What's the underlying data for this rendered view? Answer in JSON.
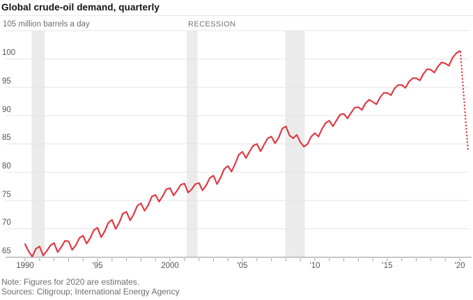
{
  "header": {
    "title": "Global crude-oil demand, quarterly",
    "unit_label": "105 million barrels a day",
    "recession_label": "RECESSION"
  },
  "footer": {
    "note": "Note: Figures for 2020 are estimates.",
    "sources": "Sources: Citigroup; International Energy Agency"
  },
  "colors": {
    "line_red": "#df3b44",
    "recession_band": "#ebebeb",
    "gridline": "#e4e4e4",
    "axis": "#999999",
    "tick": "#999999",
    "label_gray": "#565656",
    "secondary_gray": "#6d6d6d",
    "title_black": "#111111"
  },
  "chart_data": {
    "type": "line",
    "title": "Global crude-oil demand, quarterly",
    "ylabel": "million barrels a day",
    "ylim": [
      65,
      105
    ],
    "y_ticks": [
      65,
      70,
      75,
      80,
      85,
      90,
      95,
      100,
      105
    ],
    "xlim": [
      1988.65,
      2020.6
    ],
    "x_tick_years_every": 1,
    "x_tick_start": 1990,
    "x_tick_end": 2020,
    "x_tick_labels": [
      {
        "year": 1990,
        "label": "1990"
      },
      {
        "year": 1995,
        "label": "'95"
      },
      {
        "year": 2000,
        "label": "2000"
      },
      {
        "year": 2005,
        "label": "'05"
      },
      {
        "year": 2010,
        "label": "'10"
      },
      {
        "year": 2015,
        "label": "'15"
      },
      {
        "year": 2020,
        "label": "'20"
      }
    ],
    "grid": "horizontal",
    "legend": "none",
    "recessions": [
      {
        "start": 1990.45,
        "end": 1991.35
      },
      {
        "start": 2001.15,
        "end": 2001.9
      },
      {
        "start": 2007.95,
        "end": 2009.3
      }
    ],
    "series": [
      {
        "name": "Global crude-oil demand (million barrels a day)",
        "style": "solid",
        "points": [
          [
            1990.0,
            67.3
          ],
          [
            1990.25,
            66.0
          ],
          [
            1990.5,
            65.1
          ],
          [
            1990.75,
            66.5
          ],
          [
            1991.0,
            66.9
          ],
          [
            1991.25,
            65.3
          ],
          [
            1991.5,
            66.1
          ],
          [
            1991.75,
            67.1
          ],
          [
            1992.0,
            67.5
          ],
          [
            1992.25,
            65.9
          ],
          [
            1992.5,
            66.8
          ],
          [
            1992.75,
            67.9
          ],
          [
            1993.0,
            67.8
          ],
          [
            1993.25,
            66.3
          ],
          [
            1993.5,
            67.1
          ],
          [
            1993.75,
            68.4
          ],
          [
            1994.0,
            68.8
          ],
          [
            1994.25,
            67.4
          ],
          [
            1994.5,
            68.4
          ],
          [
            1994.75,
            69.8
          ],
          [
            1995.0,
            70.2
          ],
          [
            1995.25,
            68.5
          ],
          [
            1995.5,
            69.6
          ],
          [
            1995.75,
            71.1
          ],
          [
            1996.0,
            71.6
          ],
          [
            1996.25,
            70.0
          ],
          [
            1996.5,
            71.1
          ],
          [
            1996.75,
            72.7
          ],
          [
            1997.0,
            73.0
          ],
          [
            1997.25,
            71.5
          ],
          [
            1997.5,
            72.6
          ],
          [
            1997.75,
            74.1
          ],
          [
            1998.0,
            74.5
          ],
          [
            1998.25,
            73.2
          ],
          [
            1998.5,
            74.2
          ],
          [
            1998.75,
            75.7
          ],
          [
            1999.0,
            76.0
          ],
          [
            1999.25,
            74.8
          ],
          [
            1999.5,
            75.8
          ],
          [
            1999.75,
            77.0
          ],
          [
            2000.0,
            77.2
          ],
          [
            2000.25,
            75.9
          ],
          [
            2000.5,
            76.8
          ],
          [
            2000.75,
            77.8
          ],
          [
            2001.0,
            78.0
          ],
          [
            2001.25,
            76.4
          ],
          [
            2001.5,
            77.0
          ],
          [
            2001.75,
            77.9
          ],
          [
            2002.0,
            78.1
          ],
          [
            2002.25,
            76.8
          ],
          [
            2002.5,
            77.7
          ],
          [
            2002.75,
            79.0
          ],
          [
            2003.0,
            79.4
          ],
          [
            2003.25,
            77.9
          ],
          [
            2003.5,
            79.1
          ],
          [
            2003.75,
            80.6
          ],
          [
            2004.0,
            81.1
          ],
          [
            2004.25,
            80.1
          ],
          [
            2004.5,
            81.5
          ],
          [
            2004.75,
            83.1
          ],
          [
            2005.0,
            83.6
          ],
          [
            2005.25,
            82.5
          ],
          [
            2005.5,
            83.7
          ],
          [
            2005.75,
            84.7
          ],
          [
            2006.0,
            85.0
          ],
          [
            2006.25,
            83.7
          ],
          [
            2006.5,
            84.9
          ],
          [
            2006.75,
            86.0
          ],
          [
            2007.0,
            86.3
          ],
          [
            2007.25,
            85.1
          ],
          [
            2007.5,
            86.1
          ],
          [
            2007.75,
            87.7
          ],
          [
            2008.0,
            88.1
          ],
          [
            2008.25,
            86.5
          ],
          [
            2008.5,
            86.0
          ],
          [
            2008.75,
            86.6
          ],
          [
            2009.0,
            85.3
          ],
          [
            2009.25,
            84.5
          ],
          [
            2009.5,
            85.0
          ],
          [
            2009.75,
            86.3
          ],
          [
            2010.0,
            86.9
          ],
          [
            2010.25,
            86.3
          ],
          [
            2010.5,
            87.7
          ],
          [
            2010.75,
            88.7
          ],
          [
            2011.0,
            89.1
          ],
          [
            2011.25,
            88.1
          ],
          [
            2011.5,
            89.2
          ],
          [
            2011.75,
            90.2
          ],
          [
            2012.0,
            90.3
          ],
          [
            2012.25,
            89.5
          ],
          [
            2012.5,
            90.5
          ],
          [
            2012.75,
            91.4
          ],
          [
            2013.0,
            91.5
          ],
          [
            2013.25,
            91.0
          ],
          [
            2013.5,
            92.2
          ],
          [
            2013.75,
            92.8
          ],
          [
            2014.0,
            92.4
          ],
          [
            2014.25,
            92.0
          ],
          [
            2014.5,
            93.2
          ],
          [
            2014.75,
            94.0
          ],
          [
            2015.0,
            94.0
          ],
          [
            2015.25,
            93.6
          ],
          [
            2015.5,
            94.8
          ],
          [
            2015.75,
            95.4
          ],
          [
            2016.0,
            95.4
          ],
          [
            2016.25,
            94.9
          ],
          [
            2016.5,
            96.0
          ],
          [
            2016.75,
            96.6
          ],
          [
            2017.0,
            96.6
          ],
          [
            2017.25,
            96.2
          ],
          [
            2017.5,
            97.4
          ],
          [
            2017.75,
            98.2
          ],
          [
            2018.0,
            98.1
          ],
          [
            2018.25,
            97.6
          ],
          [
            2018.5,
            98.7
          ],
          [
            2018.75,
            99.4
          ],
          [
            2019.0,
            99.2
          ],
          [
            2019.25,
            98.8
          ],
          [
            2019.5,
            100.2
          ],
          [
            2019.75,
            101.0
          ],
          [
            2020.0,
            101.4
          ]
        ]
      },
      {
        "name": "2020 estimates",
        "style": "dotted",
        "points": [
          [
            2020.05,
            101.2
          ],
          [
            2020.2,
            96.0
          ],
          [
            2020.35,
            91.0
          ],
          [
            2020.5,
            86.0
          ],
          [
            2020.57,
            84.0
          ]
        ]
      }
    ]
  }
}
